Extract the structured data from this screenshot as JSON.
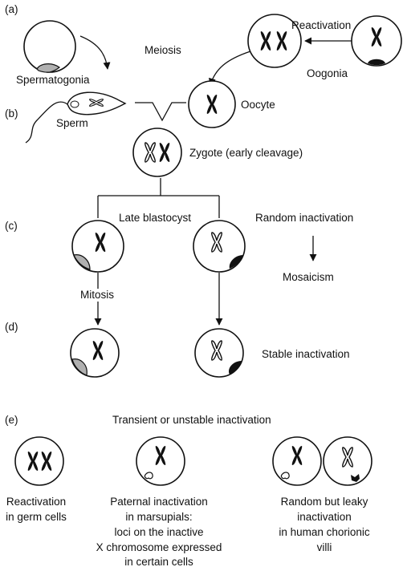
{
  "sections": {
    "a": "(a)",
    "b": "(b)",
    "c": "(c)",
    "d": "(d)",
    "e": "(e)"
  },
  "labels": {
    "spermatogonia": "Spermatogonia",
    "meiosis": "Meiosis",
    "reactivation": "Reactivation",
    "oogonia": "Oogonia",
    "sperm": "Sperm",
    "oocyte": "Oocyte",
    "zygote": "Zygote (early cleavage)",
    "late_blastocyst": "Late blastocyst",
    "random_inactivation": "Random inactivation",
    "mosaicism": "Mosaicism",
    "mitosis": "Mitosis",
    "stable_inactivation": "Stable inactivation",
    "transient": "Transient or unstable inactivation"
  },
  "captions": {
    "germ": [
      "Reactivation",
      "in germ cells"
    ],
    "marsupial": [
      "Paternal inactivation",
      "in marsupials:",
      "loci on the inactive",
      "X chromosome expressed",
      "in certain cells"
    ],
    "human": [
      "Random but leaky",
      "inactivation",
      "in human chorionic",
      "villi"
    ]
  },
  "colors": {
    "ink": "#111111",
    "shade": "#b0b0b0",
    "paper": "#ffffff"
  }
}
